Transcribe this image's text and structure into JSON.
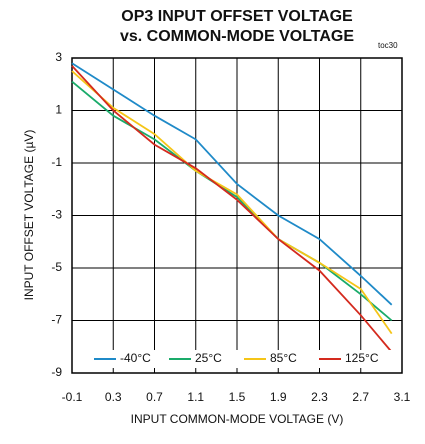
{
  "chart_data": {
    "type": "line",
    "title": "OP3 INPUT OFFSET VOLTAGE",
    "subtitle": "vs. COMMON-MODE VOLTAGE",
    "annotation": "toc30",
    "xlabel": "INPUT COMMON-MODE VOLTAGE (V)",
    "ylabel": "INPUT OFFSET VOLTAGE (µV)",
    "x": [
      -0.1,
      0.3,
      0.7,
      1.1,
      1.5,
      1.9,
      2.3,
      2.7,
      3.0
    ],
    "series": [
      {
        "name": "-40°C",
        "color": "#1f8ac8",
        "values": [
          2.8,
          1.8,
          0.8,
          -0.1,
          -1.8,
          -3.0,
          -3.9,
          -5.3,
          -6.4
        ]
      },
      {
        "name": "25°C",
        "color": "#1aab6a",
        "values": [
          2.1,
          0.8,
          -0.1,
          -1.3,
          -2.3,
          -3.9,
          -4.8,
          -6.0,
          -7.0
        ]
      },
      {
        "name": "85°C",
        "color": "#f5c518",
        "values": [
          2.5,
          1.1,
          0.1,
          -1.3,
          -2.2,
          -3.9,
          -4.8,
          -5.8,
          -7.5
        ]
      },
      {
        "name": "125°C",
        "color": "#d42a1e",
        "values": [
          2.7,
          1.0,
          -0.3,
          -1.2,
          -2.4,
          -3.9,
          -5.1,
          -6.8,
          -8.2
        ]
      }
    ],
    "xlim": [
      -0.1,
      3.1
    ],
    "xticks": [
      -0.1,
      0.3,
      0.7,
      1.1,
      1.5,
      1.9,
      2.3,
      2.7,
      3.1
    ],
    "ylim": [
      -9,
      3
    ],
    "yticks": [
      -9,
      -7,
      -5,
      -3,
      -1,
      1,
      3
    ],
    "grid": true,
    "legend": "bottom"
  }
}
